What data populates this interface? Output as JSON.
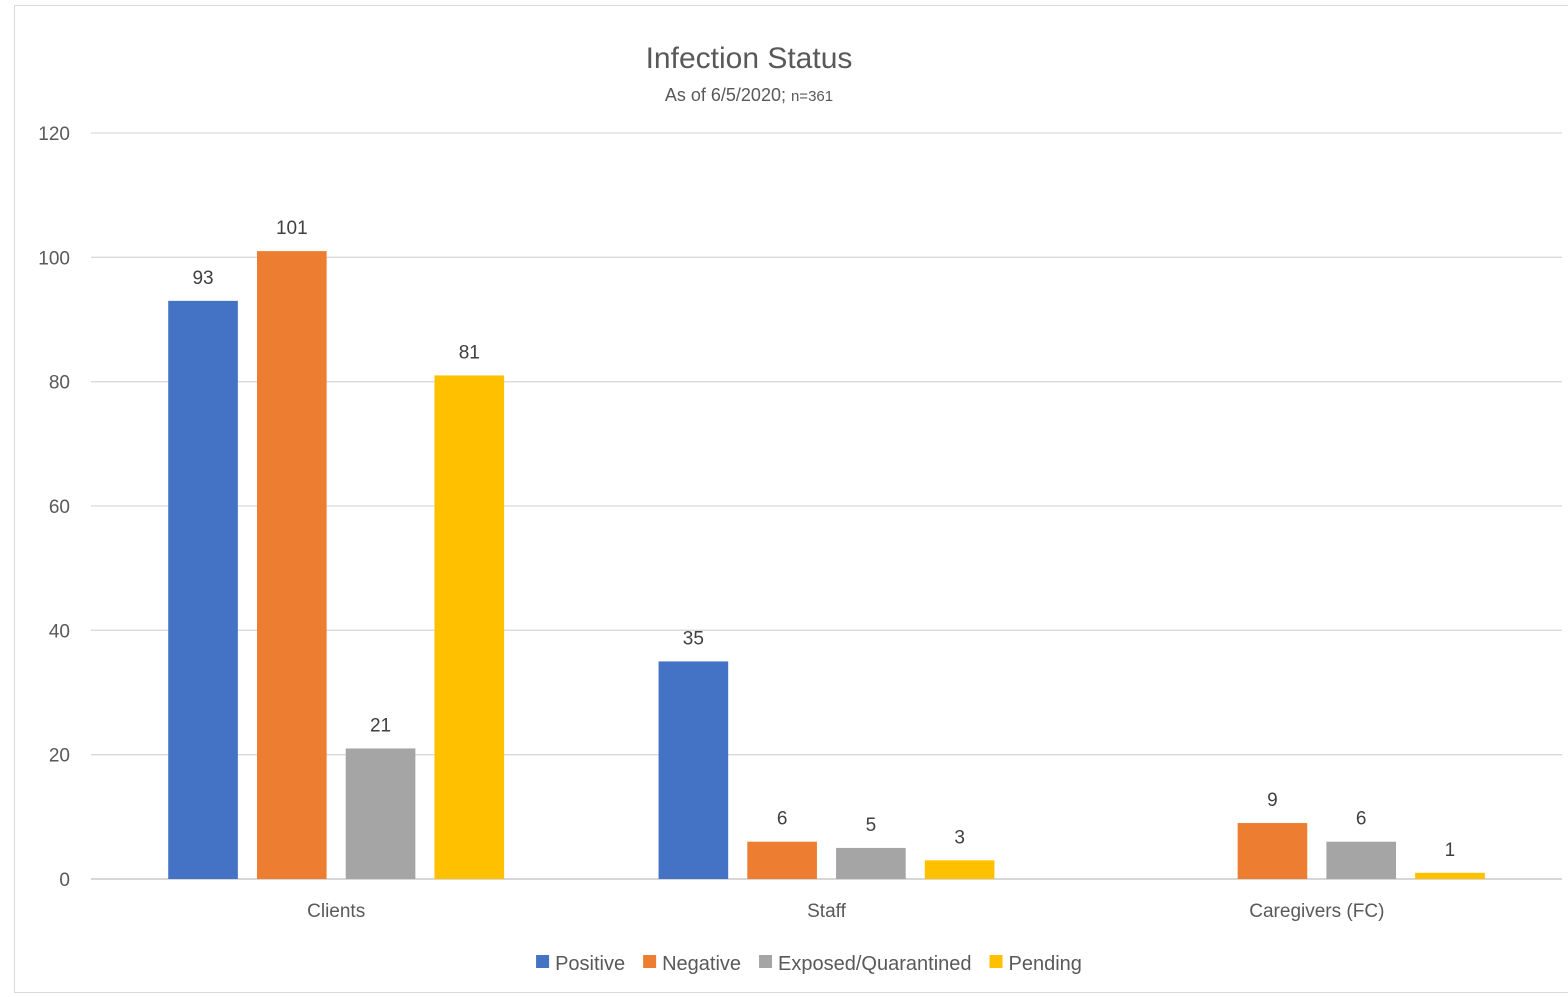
{
  "chart_data": {
    "type": "bar",
    "title": "Infection Status",
    "subtitle_main": "As of 6/5/2020; ",
    "subtitle_small": "n=361",
    "categories": [
      "Clients",
      "Staff",
      "Caregivers (FC)"
    ],
    "series": [
      {
        "name": "Positive",
        "color": "#4472C4",
        "values": [
          93,
          35,
          null
        ]
      },
      {
        "name": "Negative",
        "color": "#ED7D31",
        "values": [
          101,
          6,
          9
        ]
      },
      {
        "name": "Exposed/Quarantined",
        "color": "#A5A5A5",
        "values": [
          21,
          5,
          6
        ]
      },
      {
        "name": "Pending",
        "color": "#FFC000",
        "values": [
          81,
          3,
          1
        ]
      }
    ],
    "ylim": [
      0,
      120
    ],
    "yticks": [
      0,
      20,
      40,
      60,
      80,
      100,
      120
    ],
    "grid": true,
    "legend_position": "bottom",
    "xlabel": "",
    "ylabel": ""
  }
}
